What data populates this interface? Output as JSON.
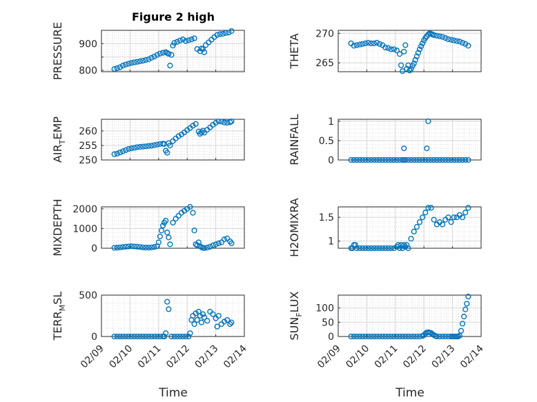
{
  "figure": {
    "title": "Figure 2 high",
    "xlabel": "Time",
    "xticklabels": [
      "02/09",
      "02/10",
      "02/11",
      "02/12",
      "02/13",
      "02/14"
    ]
  },
  "colors": {
    "marker": "#0072BD",
    "grid": "#dedede",
    "axis": "#262626"
  },
  "chart_data": [
    {
      "type": "scatter",
      "ylabel_main": "PRESSURE",
      "ylabel_sub": "",
      "ylabel_tail": "",
      "x": [
        "02/09",
        "02/14"
      ],
      "xlim_days": [
        0,
        5
      ],
      "ylim": [
        795,
        950
      ],
      "yticks": [
        800,
        850,
        900
      ],
      "yticklabels": [
        "800",
        "",
        "900"
      ],
      "x_days": [
        0.45,
        0.55,
        0.65,
        0.75,
        0.85,
        0.95,
        1.05,
        1.15,
        1.25,
        1.35,
        1.45,
        1.55,
        1.65,
        1.75,
        1.85,
        1.95,
        2.05,
        2.15,
        2.25,
        2.3,
        2.35,
        2.4,
        2.45,
        2.5,
        2.55,
        2.65,
        2.75,
        2.85,
        2.95,
        3.05,
        3.15,
        3.25,
        3.35,
        3.45,
        3.5,
        3.55,
        3.6,
        3.65,
        3.75,
        3.85,
        3.95,
        4.05,
        4.15,
        4.25,
        4.35,
        4.45,
        4.55
      ],
      "values": [
        805,
        808,
        812,
        818,
        822,
        825,
        828,
        830,
        832,
        834,
        836,
        839,
        842,
        847,
        852,
        858,
        863,
        866,
        868,
        865,
        862,
        818,
        858,
        893,
        903,
        907,
        912,
        916,
        910,
        913,
        916,
        920,
        880,
        872,
        882,
        880,
        868,
        895,
        905,
        915,
        925,
        933,
        936,
        937,
        940,
        942,
        947
      ]
    },
    {
      "type": "scatter",
      "ylabel_main": "THETA",
      "ylabel_sub": "",
      "ylabel_tail": "",
      "xlim_days": [
        0,
        5
      ],
      "ylim": [
        263.5,
        270.5
      ],
      "yticks": [
        265,
        270
      ],
      "yticklabels": [
        "265",
        "270"
      ],
      "x_days": [
        0.45,
        0.55,
        0.65,
        0.75,
        0.85,
        0.95,
        1.05,
        1.15,
        1.25,
        1.35,
        1.45,
        1.55,
        1.65,
        1.75,
        1.85,
        1.95,
        2.05,
        2.15,
        2.2,
        2.25,
        2.3,
        2.35,
        2.4,
        2.45,
        2.5,
        2.55,
        2.6,
        2.65,
        2.7,
        2.75,
        2.8,
        2.85,
        2.9,
        2.95,
        3.0,
        3.05,
        3.1,
        3.15,
        3.2,
        3.25,
        3.3,
        3.35,
        3.45,
        3.55,
        3.65,
        3.75,
        3.85,
        3.95,
        4.05,
        4.15,
        4.25,
        4.35,
        4.45,
        4.55
      ],
      "values": [
        268.3,
        267.9,
        268.0,
        268.1,
        268.2,
        268.3,
        268.4,
        268.3,
        268.3,
        268.4,
        268.2,
        268.0,
        267.6,
        267.5,
        267.3,
        267.3,
        267.1,
        266.5,
        264.6,
        263.6,
        266.9,
        268.0,
        264.0,
        264.6,
        263.7,
        264.0,
        264.5,
        264.9,
        265.5,
        266.1,
        266.7,
        267.3,
        267.8,
        268.3,
        268.8,
        269.2,
        269.5,
        269.8,
        270.0,
        269.9,
        269.8,
        269.7,
        269.6,
        269.5,
        269.4,
        269.2,
        269.0,
        268.9,
        268.8,
        268.7,
        268.6,
        268.4,
        268.2,
        267.9
      ]
    },
    {
      "type": "scatter",
      "ylabel_main": "AIR",
      "ylabel_sub": "T",
      "ylabel_tail": "EMP",
      "xlim_days": [
        0,
        5
      ],
      "ylim": [
        250,
        264
      ],
      "yticks": [
        250,
        255,
        260
      ],
      "yticklabels": [
        "250",
        "255",
        "260"
      ],
      "x_days": [
        0.45,
        0.55,
        0.65,
        0.75,
        0.85,
        0.95,
        1.05,
        1.15,
        1.25,
        1.35,
        1.45,
        1.55,
        1.65,
        1.75,
        1.85,
        1.95,
        2.05,
        2.15,
        2.2,
        2.25,
        2.3,
        2.35,
        2.4,
        2.5,
        2.6,
        2.7,
        2.8,
        2.9,
        3.0,
        3.1,
        3.2,
        3.3,
        3.4,
        3.45,
        3.5,
        3.55,
        3.6,
        3.7,
        3.8,
        3.9,
        4.0,
        4.1,
        4.2,
        4.3,
        4.4,
        4.5,
        4.55
      ],
      "values": [
        252.0,
        252.2,
        252.6,
        253.0,
        253.4,
        253.8,
        254.0,
        254.2,
        254.4,
        254.5,
        254.6,
        254.7,
        254.8,
        254.9,
        255.1,
        255.3,
        255.5,
        255.6,
        255.5,
        253.2,
        252.5,
        255.8,
        255.0,
        256.5,
        257.4,
        258.2,
        258.8,
        259.5,
        260.3,
        261.0,
        261.8,
        262.4,
        259.8,
        259.0,
        259.5,
        260.1,
        259.4,
        260.4,
        261.2,
        262.1,
        262.8,
        263.3,
        263.2,
        262.9,
        262.8,
        263.0,
        263.3
      ]
    },
    {
      "type": "scatter",
      "ylabel_main": "RAINFALL",
      "ylabel_sub": "",
      "ylabel_tail": "",
      "xlim_days": [
        0,
        5
      ],
      "ylim": [
        0,
        1.05
      ],
      "yticks": [
        0,
        0.5,
        1
      ],
      "yticklabels": [
        "0",
        "0.5",
        "1"
      ],
      "x_days": [
        0.45,
        0.55,
        0.65,
        0.75,
        0.85,
        0.95,
        1.05,
        1.15,
        1.25,
        1.35,
        1.45,
        1.55,
        1.65,
        1.75,
        1.85,
        1.95,
        2.05,
        2.15,
        2.25,
        2.3,
        2.35,
        2.45,
        2.55,
        2.65,
        2.75,
        2.85,
        2.95,
        3.05,
        3.15,
        3.25,
        3.35,
        3.45,
        3.55,
        3.65,
        3.75,
        3.85,
        3.95,
        4.05,
        4.15,
        4.25,
        4.35,
        4.45,
        4.55,
        2.3,
        3.1,
        3.15
      ],
      "values": [
        0,
        0,
        0,
        0,
        0,
        0,
        0,
        0,
        0,
        0,
        0,
        0,
        0,
        0,
        0,
        0,
        0,
        0,
        0,
        0,
        0,
        0,
        0,
        0,
        0,
        0,
        0,
        0,
        0,
        0,
        0,
        0,
        0,
        0,
        0,
        0,
        0,
        0,
        0,
        0,
        0,
        0,
        0,
        0.3,
        0.3,
        1.0
      ]
    },
    {
      "type": "scatter",
      "ylabel_main": "MIXDEPTH",
      "ylabel_sub": "",
      "ylabel_tail": "",
      "xlim_days": [
        0,
        5
      ],
      "ylim": [
        0,
        2100
      ],
      "yticks": [
        0,
        1000,
        2000
      ],
      "yticklabels": [
        "0",
        "1000",
        "2000"
      ],
      "x_days": [
        0.45,
        0.55,
        0.65,
        0.75,
        0.85,
        0.95,
        1.05,
        1.15,
        1.25,
        1.35,
        1.45,
        1.55,
        1.65,
        1.75,
        1.85,
        1.95,
        2.0,
        2.05,
        2.1,
        2.15,
        2.2,
        2.25,
        2.3,
        2.35,
        2.4,
        2.5,
        2.6,
        2.7,
        2.8,
        2.9,
        3.0,
        3.1,
        3.2,
        3.25,
        3.3,
        3.35,
        3.4,
        3.45,
        3.5,
        3.55,
        3.6,
        3.7,
        3.8,
        3.9,
        4.0,
        4.1,
        4.2,
        4.3,
        4.4,
        4.5,
        4.55
      ],
      "values": [
        20,
        30,
        40,
        60,
        80,
        90,
        100,
        90,
        80,
        60,
        40,
        30,
        30,
        40,
        60,
        100,
        300,
        600,
        900,
        1150,
        1300,
        1400,
        800,
        550,
        200,
        1300,
        1500,
        1650,
        1800,
        1900,
        2000,
        2100,
        1800,
        900,
        200,
        150,
        300,
        100,
        50,
        20,
        10,
        30,
        80,
        150,
        200,
        250,
        300,
        450,
        500,
        350,
        250
      ]
    },
    {
      "type": "scatter",
      "ylabel_main": "H2OMIXRA",
      "ylabel_sub": "",
      "ylabel_tail": "",
      "xlim_days": [
        0,
        5
      ],
      "ylim": [
        0.85,
        1.72
      ],
      "yticks": [
        1,
        1.5
      ],
      "yticklabels": [
        "1",
        "1.5"
      ],
      "x_days": [
        0.45,
        0.5,
        0.55,
        0.6,
        0.65,
        0.75,
        0.85,
        0.95,
        1.05,
        1.15,
        1.25,
        1.35,
        1.45,
        1.55,
        1.65,
        1.75,
        1.85,
        1.95,
        2.05,
        2.1,
        2.15,
        2.2,
        2.25,
        2.3,
        2.35,
        2.4,
        2.45,
        2.55,
        2.65,
        2.75,
        2.85,
        2.95,
        3.05,
        3.15,
        3.25,
        3.35,
        3.45,
        3.55,
        3.65,
        3.75,
        3.85,
        3.95,
        4.05,
        4.15,
        4.25,
        4.35,
        4.45,
        4.55
      ],
      "values": [
        0.85,
        0.85,
        0.92,
        0.92,
        0.85,
        0.85,
        0.85,
        0.85,
        0.85,
        0.85,
        0.85,
        0.85,
        0.85,
        0.85,
        0.85,
        0.85,
        0.85,
        0.85,
        0.88,
        0.92,
        0.85,
        0.92,
        0.85,
        0.92,
        0.88,
        0.92,
        0.85,
        1.05,
        1.2,
        1.3,
        1.4,
        1.5,
        1.6,
        1.7,
        1.7,
        1.45,
        1.35,
        1.4,
        1.35,
        1.45,
        1.5,
        1.4,
        1.5,
        1.5,
        1.55,
        1.5,
        1.6,
        1.7
      ]
    },
    {
      "type": "scatter",
      "ylabel_main": "TERR",
      "ylabel_sub": "M",
      "ylabel_tail": "SL",
      "xlim_days": [
        0,
        5
      ],
      "ylim": [
        0,
        500
      ],
      "yticks": [
        0,
        500
      ],
      "yticklabels": [
        "0",
        "500"
      ],
      "x_days": [
        0.45,
        0.55,
        0.65,
        0.75,
        0.85,
        0.95,
        1.05,
        1.15,
        1.25,
        1.35,
        1.45,
        1.55,
        1.65,
        1.75,
        1.85,
        1.95,
        2.05,
        2.15,
        2.2,
        2.25,
        2.3,
        2.35,
        2.45,
        2.55,
        2.65,
        2.75,
        2.85,
        2.95,
        3.05,
        3.1,
        3.15,
        3.2,
        3.25,
        3.3,
        3.35,
        3.4,
        3.45,
        3.5,
        3.55,
        3.6,
        3.7,
        3.8,
        3.9,
        4.0,
        4.05,
        4.1,
        4.2,
        4.3,
        4.4,
        4.5,
        4.55
      ],
      "values": [
        0,
        0,
        0,
        0,
        0,
        0,
        0,
        0,
        0,
        0,
        0,
        0,
        0,
        0,
        0,
        0,
        0,
        0,
        0,
        40,
        420,
        330,
        0,
        0,
        0,
        0,
        0,
        0,
        0,
        40,
        200,
        250,
        150,
        280,
        200,
        300,
        250,
        170,
        270,
        230,
        190,
        300,
        270,
        220,
        120,
        250,
        150,
        180,
        200,
        150,
        170
      ]
    },
    {
      "type": "scatter",
      "ylabel_main": "SUN",
      "ylabel_sub": "F",
      "ylabel_tail": "LUX",
      "xlim_days": [
        0,
        5
      ],
      "ylim": [
        0,
        145
      ],
      "yticks": [
        0,
        50,
        100
      ],
      "yticklabels": [
        "0",
        "50",
        "100"
      ],
      "x_days": [
        0.45,
        0.55,
        0.65,
        0.75,
        0.85,
        0.95,
        1.05,
        1.15,
        1.25,
        1.35,
        1.45,
        1.55,
        1.65,
        1.75,
        1.85,
        1.95,
        2.05,
        2.15,
        2.25,
        2.35,
        2.45,
        2.55,
        2.65,
        2.75,
        2.85,
        2.95,
        3.0,
        3.05,
        3.1,
        3.15,
        3.2,
        3.25,
        3.3,
        3.35,
        3.4,
        3.45,
        3.55,
        3.65,
        3.75,
        3.85,
        3.95,
        4.0,
        4.05,
        4.1,
        4.15,
        4.2,
        4.25,
        4.3,
        4.35,
        4.4,
        4.45,
        4.5,
        4.55
      ],
      "values": [
        0,
        0,
        0,
        0,
        0,
        0,
        0,
        0,
        0,
        0,
        0,
        0,
        0,
        0,
        0,
        0,
        0,
        0,
        0,
        0,
        0,
        0,
        0,
        0,
        0,
        2,
        5,
        10,
        14,
        15,
        14,
        12,
        8,
        5,
        2,
        0,
        0,
        0,
        0,
        0,
        0,
        0,
        0,
        0,
        0,
        0,
        3,
        20,
        45,
        70,
        95,
        115,
        140
      ]
    }
  ]
}
